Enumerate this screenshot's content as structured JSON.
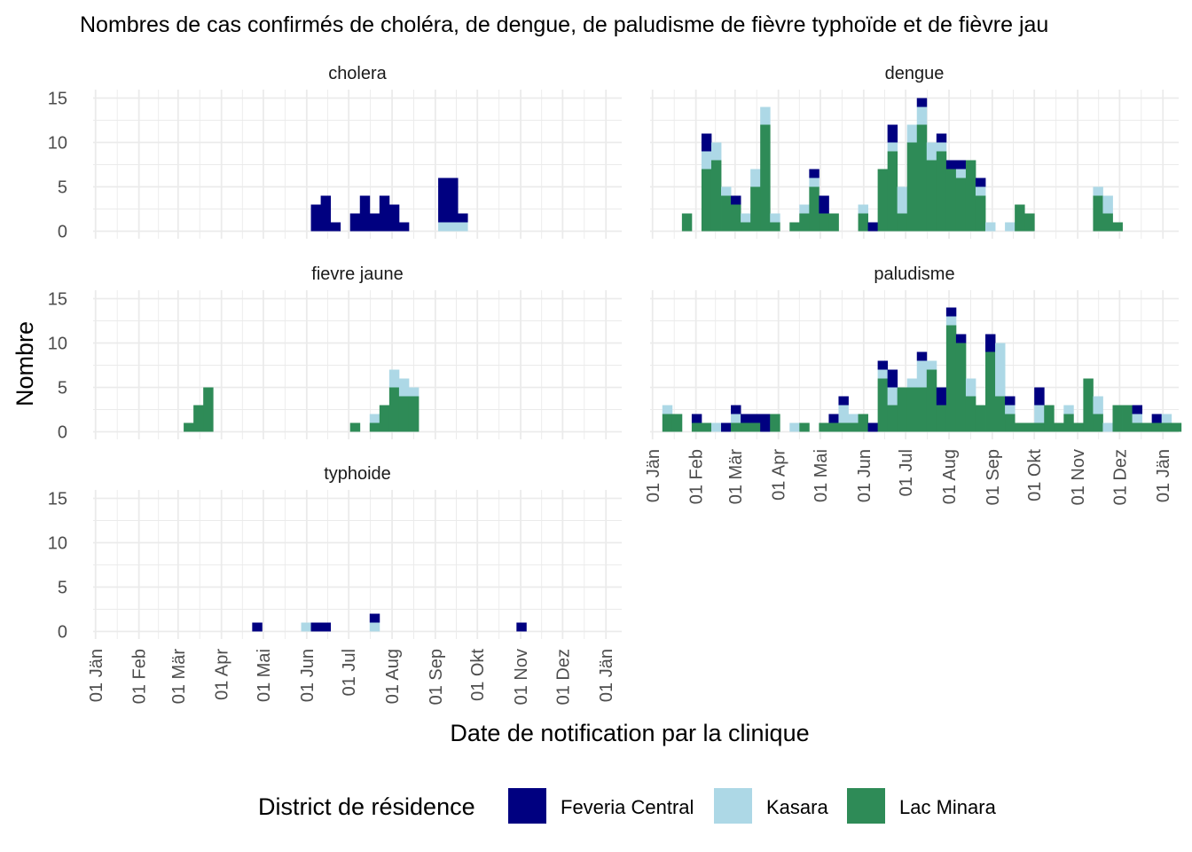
{
  "chart_data": {
    "type": "bar",
    "subtype": "stacked-histogram-weekly-faceted",
    "title": "Nombres de cas confirmés de choléra, de dengue, de paludisme de fièvre typhoïde et de fièvre jau",
    "xlabel": "Date de notification par la clinique",
    "ylabel": "Nombre",
    "ylim": [
      0,
      15
    ],
    "y_ticks": [
      "0",
      "5",
      "10",
      "15"
    ],
    "x_ticks": [
      "01 Jän",
      "01 Feb",
      "01 Mär",
      "01 Apr",
      "01 Mai",
      "01 Jun",
      "01 Jul",
      "01 Aug",
      "01 Sep",
      "01 Okt",
      "01 Nov",
      "01 Dez",
      "01 Jän"
    ],
    "bin": "1 week (week 0 starts 01 Jän)",
    "grid": true,
    "legend": {
      "title": "District de résidence",
      "position": "bottom",
      "entries": [
        {
          "name": "Feveria Central",
          "color": "#000080"
        },
        {
          "name": "Kasara",
          "color": "#add8e6"
        },
        {
          "name": "Lac Minara",
          "color": "#2e8b57"
        }
      ]
    },
    "series_order": [
      "Lac Minara",
      "Kasara",
      "Feveria Central"
    ],
    "facets": [
      {
        "name": "cholera",
        "weeks": [
          [
            22,
            0,
            0,
            3
          ],
          [
            23,
            0,
            0,
            4
          ],
          [
            24,
            0,
            0,
            1
          ],
          [
            26,
            0,
            0,
            2
          ],
          [
            27,
            0,
            0,
            4
          ],
          [
            28,
            0,
            0,
            2
          ],
          [
            29,
            0,
            0,
            4
          ],
          [
            30,
            0,
            0,
            3
          ],
          [
            31,
            0,
            0,
            1
          ],
          [
            35,
            0,
            1,
            5
          ],
          [
            36,
            0,
            1,
            5
          ],
          [
            37,
            0,
            1,
            1
          ]
        ]
      },
      {
        "name": "dengue",
        "weeks": [
          [
            3,
            2,
            0,
            0
          ],
          [
            5,
            7,
            2,
            2
          ],
          [
            6,
            8,
            2,
            0
          ],
          [
            7,
            4,
            1,
            0
          ],
          [
            8,
            3,
            0,
            1
          ],
          [
            9,
            1,
            1,
            0
          ],
          [
            10,
            5,
            2,
            0
          ],
          [
            11,
            12,
            2,
            0
          ],
          [
            12,
            1,
            1,
            0
          ],
          [
            14,
            1,
            0,
            0
          ],
          [
            15,
            2,
            1,
            0
          ],
          [
            16,
            5,
            1,
            1
          ],
          [
            17,
            2,
            0,
            2
          ],
          [
            18,
            2,
            0,
            0
          ],
          [
            21,
            2,
            1,
            0
          ],
          [
            22,
            0,
            0,
            1
          ],
          [
            23,
            7,
            0,
            0
          ],
          [
            24,
            9,
            1,
            2
          ],
          [
            25,
            2,
            3,
            0
          ],
          [
            26,
            10,
            2,
            0
          ],
          [
            27,
            12,
            2,
            1
          ],
          [
            28,
            8,
            2,
            0
          ],
          [
            29,
            9,
            1,
            1
          ],
          [
            30,
            7,
            0,
            1
          ],
          [
            31,
            6,
            1,
            1
          ],
          [
            32,
            8,
            0,
            0
          ],
          [
            33,
            4,
            1,
            1
          ],
          [
            34,
            0,
            1,
            0
          ],
          [
            36,
            0,
            1,
            0
          ],
          [
            37,
            3,
            0,
            0
          ],
          [
            38,
            2,
            0,
            0
          ],
          [
            45,
            4,
            1,
            0
          ],
          [
            46,
            2,
            2,
            0
          ],
          [
            47,
            1,
            0,
            0
          ]
        ]
      },
      {
        "name": "fievre jaune",
        "weeks": [
          [
            9,
            1,
            0,
            0
          ],
          [
            10,
            3,
            0,
            0
          ],
          [
            11,
            5,
            0,
            0
          ],
          [
            26,
            1,
            0,
            0
          ],
          [
            28,
            1,
            1,
            0
          ],
          [
            29,
            3,
            0,
            0
          ],
          [
            30,
            5,
            2,
            0
          ],
          [
            31,
            4,
            2,
            0
          ],
          [
            32,
            4,
            1,
            0
          ]
        ]
      },
      {
        "name": "paludisme",
        "weeks": [
          [
            1,
            2,
            1,
            0
          ],
          [
            2,
            2,
            0,
            0
          ],
          [
            4,
            1,
            0,
            1
          ],
          [
            5,
            1,
            0,
            0
          ],
          [
            6,
            0,
            1,
            0
          ],
          [
            7,
            0,
            0,
            1
          ],
          [
            8,
            1,
            1,
            1
          ],
          [
            9,
            1,
            0,
            1
          ],
          [
            10,
            1,
            0,
            1
          ],
          [
            11,
            0,
            0,
            2
          ],
          [
            12,
            2,
            0,
            0
          ],
          [
            14,
            0,
            1,
            0
          ],
          [
            15,
            1,
            0,
            0
          ],
          [
            17,
            1,
            0,
            0
          ],
          [
            18,
            1,
            0,
            1
          ],
          [
            19,
            1,
            2,
            1
          ],
          [
            20,
            1,
            1,
            0
          ],
          [
            21,
            2,
            0,
            0
          ],
          [
            22,
            0,
            0,
            1
          ],
          [
            23,
            6,
            1,
            1
          ],
          [
            24,
            3,
            2,
            2
          ],
          [
            25,
            5,
            0,
            0
          ],
          [
            26,
            5,
            1,
            0
          ],
          [
            27,
            5,
            3,
            1
          ],
          [
            28,
            7,
            1,
            0
          ],
          [
            29,
            3,
            0,
            2
          ],
          [
            30,
            12,
            1,
            1
          ],
          [
            31,
            10,
            0,
            1
          ],
          [
            32,
            4,
            2,
            0
          ],
          [
            33,
            3,
            0,
            0
          ],
          [
            34,
            9,
            0,
            2
          ],
          [
            35,
            4,
            6,
            0
          ],
          [
            36,
            2,
            1,
            1
          ],
          [
            37,
            1,
            0,
            0
          ],
          [
            38,
            1,
            0,
            0
          ],
          [
            39,
            1,
            2,
            2
          ],
          [
            40,
            3,
            0,
            0
          ],
          [
            41,
            1,
            0,
            0
          ],
          [
            42,
            2,
            1,
            0
          ],
          [
            43,
            1,
            0,
            0
          ],
          [
            44,
            6,
            0,
            0
          ],
          [
            45,
            2,
            2,
            0
          ],
          [
            46,
            0,
            1,
            0
          ],
          [
            47,
            3,
            0,
            0
          ],
          [
            48,
            3,
            0,
            0
          ],
          [
            49,
            1,
            1,
            1
          ],
          [
            50,
            1,
            0,
            0
          ],
          [
            51,
            1,
            0,
            1
          ],
          [
            52,
            1,
            1,
            0
          ],
          [
            53,
            1,
            0,
            0
          ]
        ]
      },
      {
        "name": "typhoide",
        "weeks": [
          [
            16,
            0,
            0,
            1
          ],
          [
            21,
            0,
            1,
            0
          ],
          [
            22,
            0,
            0,
            1
          ],
          [
            23,
            0,
            0,
            1
          ],
          [
            28,
            0,
            1,
            1
          ],
          [
            43,
            0,
            0,
            1
          ]
        ]
      }
    ]
  }
}
